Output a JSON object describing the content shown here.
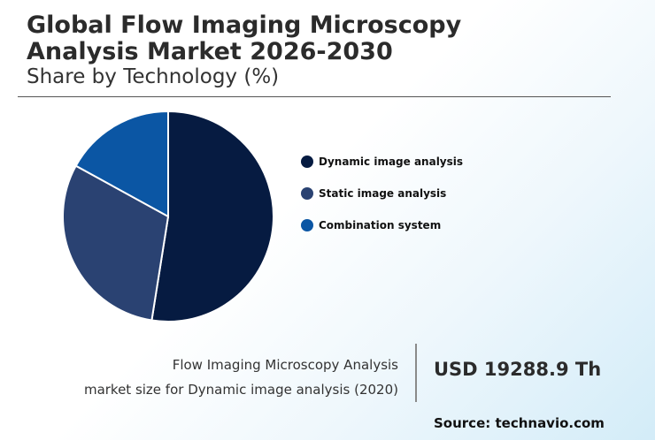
{
  "header": {
    "title_line1": "Global Flow Imaging Microscopy",
    "title_line2": "Analysis Market 2026-2030",
    "subtitle": "Share by Technology (%)"
  },
  "chart_data": {
    "type": "pie",
    "categories": [
      "Dynamic image analysis",
      "Static image analysis",
      "Combination system"
    ],
    "values": [
      52.5,
      30.5,
      17.0
    ],
    "colors": [
      "#061b41",
      "#2a4272",
      "#0b56a4"
    ],
    "legend_position": "right",
    "start_angle": "12 o'clock",
    "direction": "clockwise"
  },
  "legend": {
    "items": [
      {
        "label": "Dynamic image analysis",
        "color": "#061b41"
      },
      {
        "label": "Static image analysis",
        "color": "#2a4272"
      },
      {
        "label": "Combination system",
        "color": "#0b56a4"
      }
    ]
  },
  "footer": {
    "market_line1": "Flow Imaging Microscopy Analysis",
    "market_line2": "market size for Dynamic image analysis (2020)",
    "market_value": "USD 19288.9 Th",
    "source": "Source: technavio.com"
  }
}
